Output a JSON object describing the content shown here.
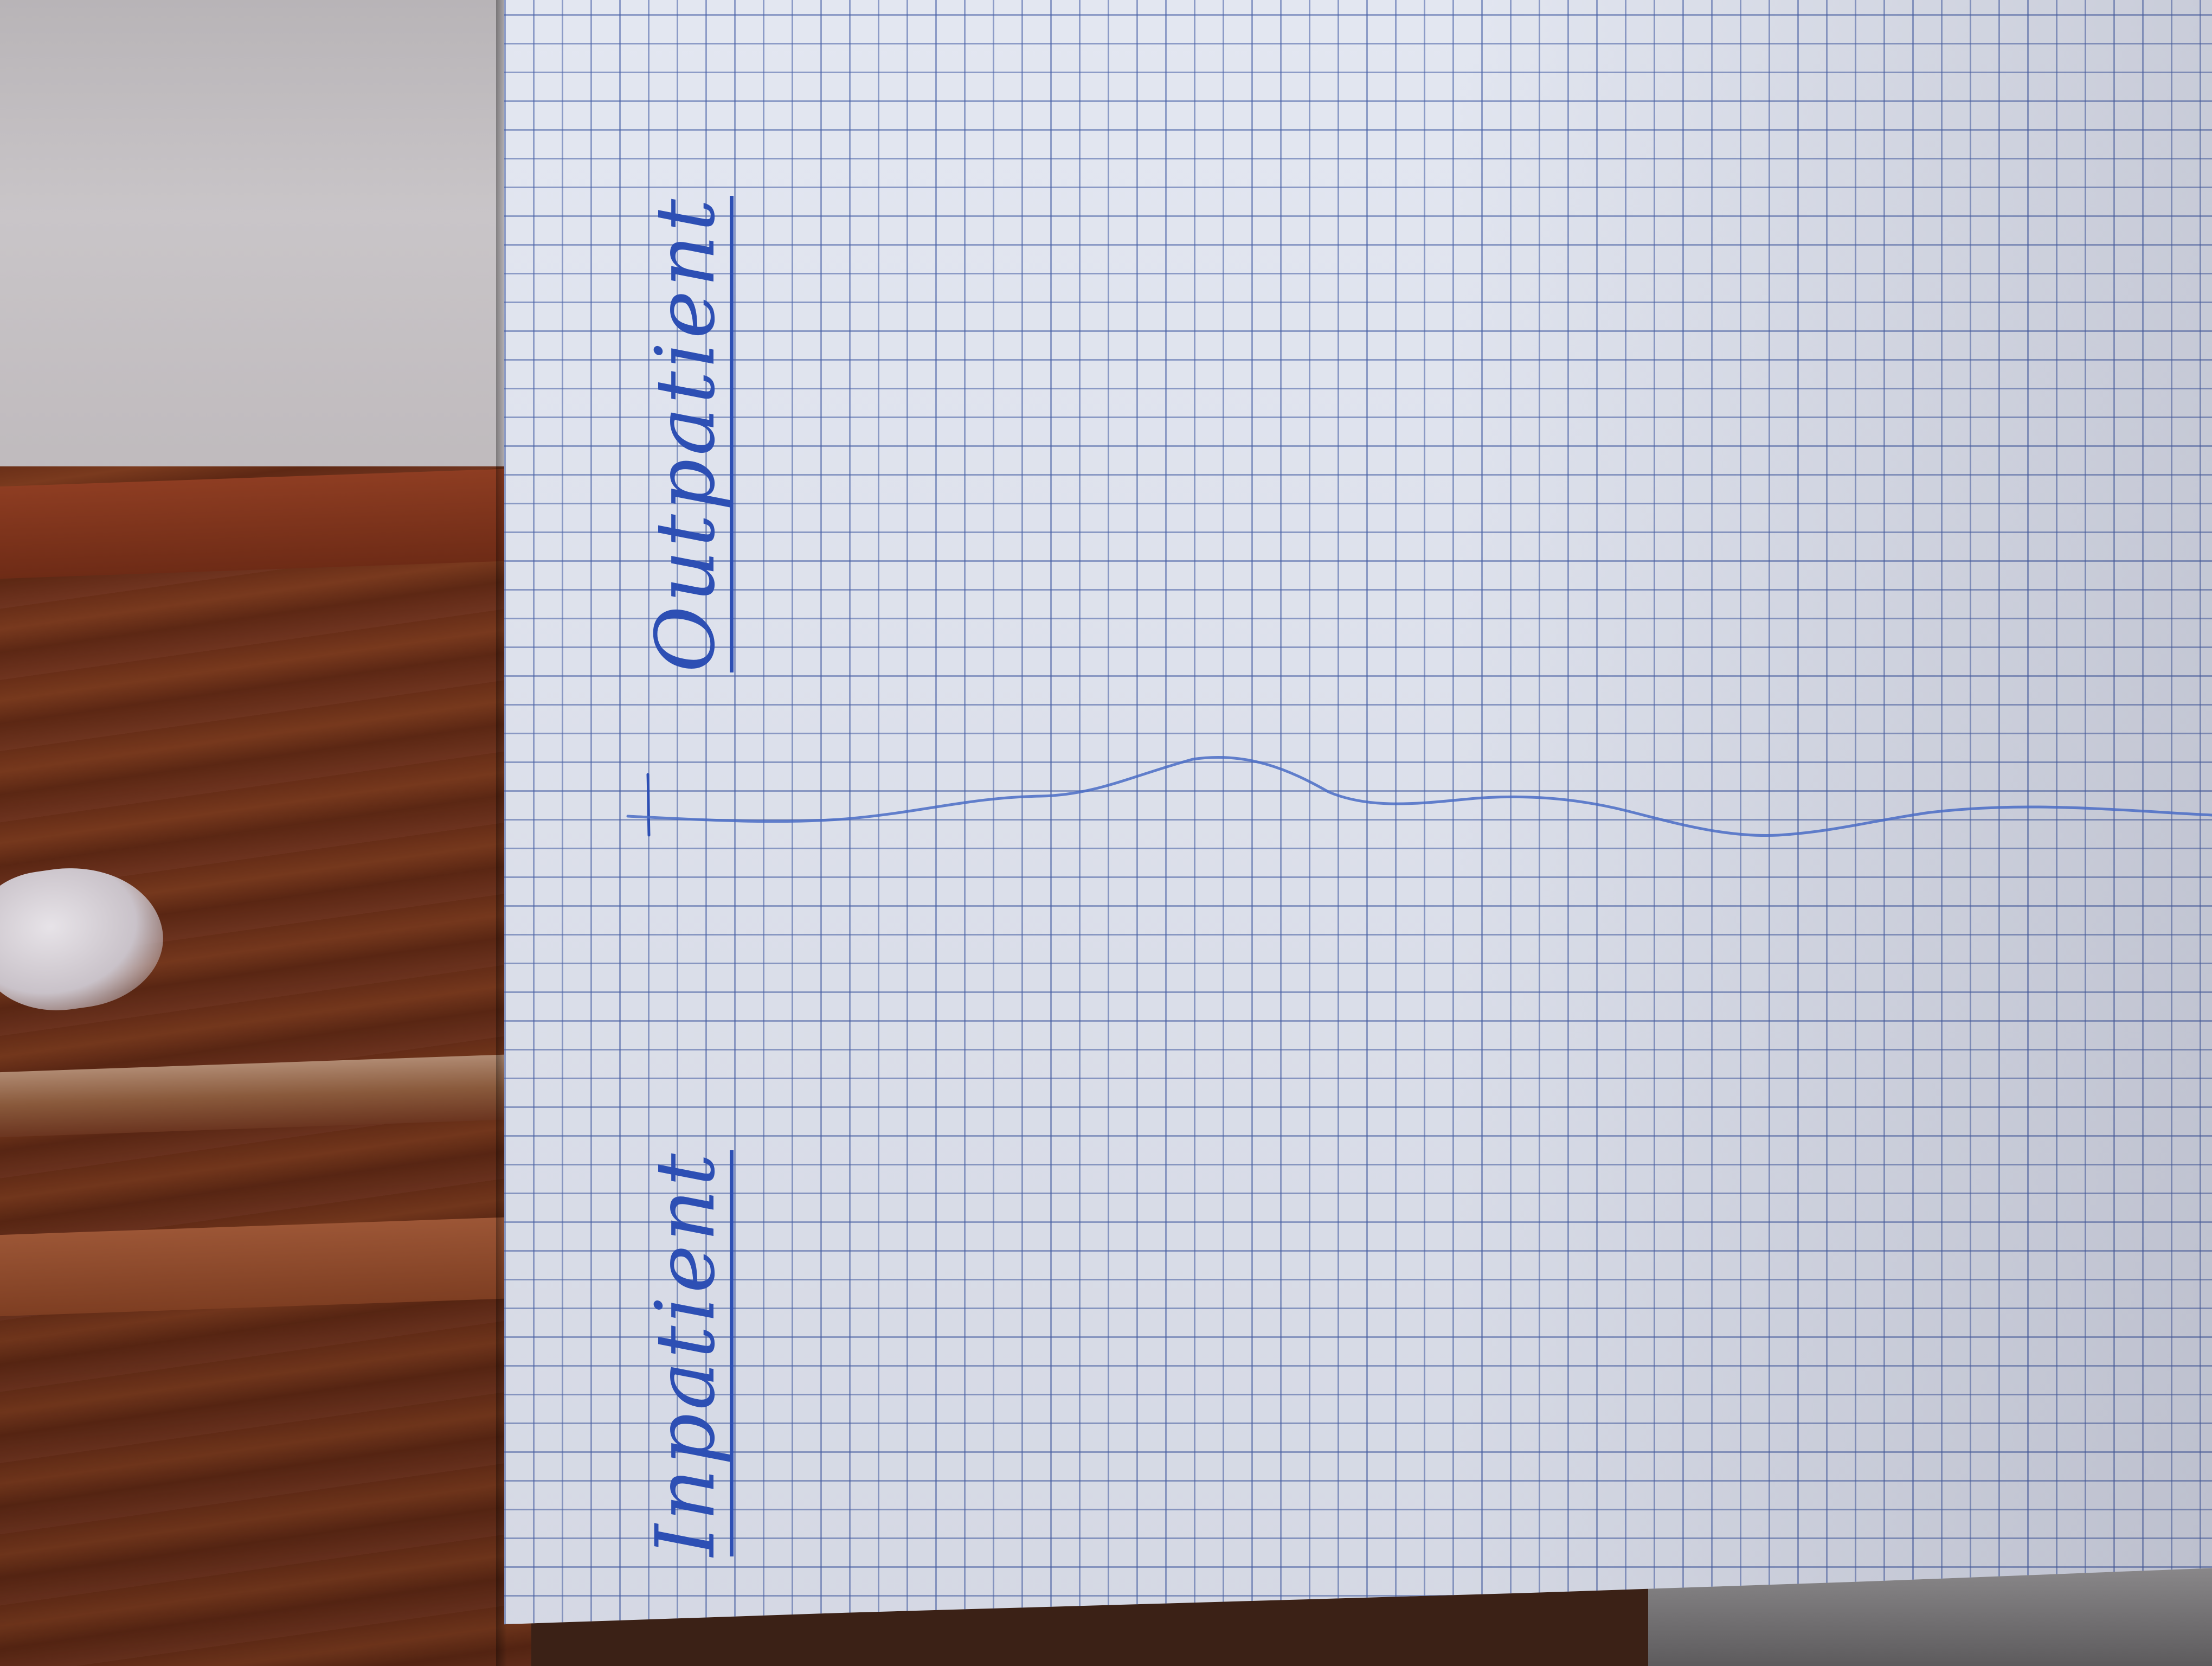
{
  "labels": {
    "outpatient": "Outpatient",
    "inpatient": "Inpatient"
  },
  "colors": {
    "ink": "#2d4fb4",
    "paper": "#e3e7f1",
    "grid": "#4660a5",
    "wood": "#6b3019",
    "wall": "#c9c5c8"
  }
}
